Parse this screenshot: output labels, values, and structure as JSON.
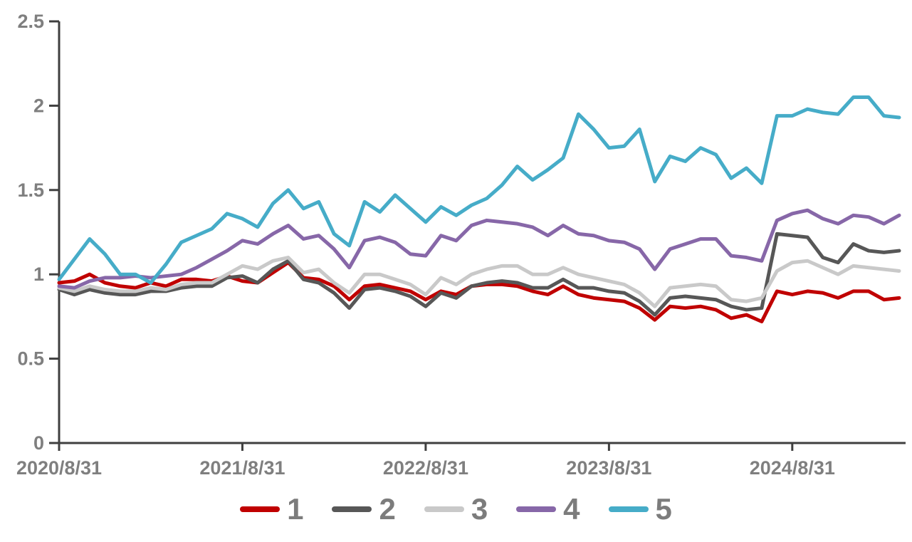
{
  "chart_data": {
    "type": "line",
    "title": "",
    "xlabel": "",
    "ylabel": "",
    "ylim": [
      0,
      2.5
    ],
    "grid": false,
    "legend_position": "bottom",
    "axis_color": "#3f3f3f",
    "label_color": "#7f7f7f",
    "y_ticks": [
      0,
      0.5,
      1,
      1.5,
      2,
      2.5
    ],
    "y_tick_labels": [
      "0",
      "0.5",
      "1",
      "1.5",
      "2",
      "2.5"
    ],
    "x_ticks": [
      {
        "index": 0,
        "label": "2020/8/31"
      },
      {
        "index": 12,
        "label": "2021/8/31"
      },
      {
        "index": 24,
        "label": "2022/8/31"
      },
      {
        "index": 36,
        "label": "2023/8/31"
      },
      {
        "index": 48,
        "label": "2024/8/31"
      }
    ],
    "x_unit": "month",
    "series": [
      {
        "name": "1",
        "color": "#c00000",
        "values": [
          0.95,
          0.96,
          1.0,
          0.95,
          0.93,
          0.92,
          0.95,
          0.93,
          0.97,
          0.97,
          0.96,
          0.99,
          0.96,
          0.95,
          1.01,
          1.07,
          0.98,
          0.97,
          0.93,
          0.85,
          0.93,
          0.94,
          0.92,
          0.9,
          0.85,
          0.9,
          0.88,
          0.93,
          0.94,
          0.94,
          0.93,
          0.9,
          0.88,
          0.93,
          0.88,
          0.86,
          0.85,
          0.84,
          0.8,
          0.73,
          0.81,
          0.8,
          0.81,
          0.79,
          0.74,
          0.76,
          0.72,
          0.9,
          0.88,
          0.9,
          0.89,
          0.86,
          0.9,
          0.9,
          0.85,
          0.86
        ]
      },
      {
        "name": "2",
        "color": "#575757",
        "values": [
          0.91,
          0.88,
          0.91,
          0.89,
          0.88,
          0.88,
          0.9,
          0.9,
          0.92,
          0.93,
          0.93,
          0.98,
          0.99,
          0.95,
          1.03,
          1.08,
          0.97,
          0.95,
          0.89,
          0.8,
          0.91,
          0.92,
          0.9,
          0.87,
          0.81,
          0.89,
          0.86,
          0.93,
          0.95,
          0.96,
          0.95,
          0.92,
          0.92,
          0.97,
          0.92,
          0.92,
          0.9,
          0.89,
          0.84,
          0.76,
          0.86,
          0.87,
          0.86,
          0.85,
          0.81,
          0.79,
          0.8,
          1.24,
          1.23,
          1.22,
          1.1,
          1.07,
          1.18,
          1.14,
          1.13,
          1.14
        ]
      },
      {
        "name": "3",
        "color": "#c9c9c9",
        "values": [
          0.92,
          0.9,
          0.93,
          0.91,
          0.9,
          0.9,
          0.92,
          0.91,
          0.94,
          0.95,
          0.95,
          1.0,
          1.05,
          1.03,
          1.08,
          1.1,
          1.01,
          1.03,
          0.95,
          0.89,
          1.0,
          1.0,
          0.97,
          0.94,
          0.88,
          0.98,
          0.94,
          1.0,
          1.03,
          1.05,
          1.05,
          1.0,
          1.0,
          1.04,
          1.0,
          0.98,
          0.96,
          0.94,
          0.89,
          0.81,
          0.92,
          0.93,
          0.94,
          0.93,
          0.85,
          0.84,
          0.86,
          1.02,
          1.07,
          1.08,
          1.04,
          1.0,
          1.05,
          1.04,
          1.03,
          1.02
        ]
      },
      {
        "name": "4",
        "color": "#8767a8",
        "values": [
          0.93,
          0.92,
          0.96,
          0.98,
          0.98,
          0.99,
          0.98,
          0.99,
          1.0,
          1.04,
          1.09,
          1.14,
          1.2,
          1.18,
          1.24,
          1.29,
          1.21,
          1.23,
          1.15,
          1.04,
          1.2,
          1.22,
          1.19,
          1.12,
          1.11,
          1.23,
          1.2,
          1.29,
          1.32,
          1.31,
          1.3,
          1.28,
          1.23,
          1.29,
          1.24,
          1.23,
          1.2,
          1.19,
          1.15,
          1.03,
          1.15,
          1.18,
          1.21,
          1.21,
          1.11,
          1.1,
          1.08,
          1.32,
          1.36,
          1.38,
          1.33,
          1.3,
          1.35,
          1.34,
          1.3,
          1.35
        ]
      },
      {
        "name": "5",
        "color": "#46acc8",
        "values": [
          0.97,
          1.09,
          1.21,
          1.12,
          1.0,
          1.0,
          0.95,
          1.06,
          1.19,
          1.23,
          1.27,
          1.36,
          1.33,
          1.28,
          1.42,
          1.5,
          1.39,
          1.43,
          1.24,
          1.17,
          1.43,
          1.37,
          1.47,
          1.39,
          1.31,
          1.4,
          1.35,
          1.41,
          1.45,
          1.53,
          1.64,
          1.56,
          1.62,
          1.69,
          1.95,
          1.86,
          1.75,
          1.76,
          1.86,
          1.55,
          1.7,
          1.67,
          1.75,
          1.71,
          1.57,
          1.63,
          1.54,
          1.94,
          1.94,
          1.98,
          1.96,
          1.95,
          2.05,
          2.05,
          1.94,
          1.93
        ]
      }
    ]
  }
}
